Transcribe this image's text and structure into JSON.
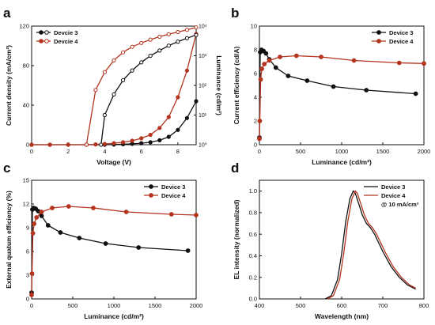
{
  "colors": {
    "device3": "#111111",
    "device4": "#b5341f",
    "axis": "#111111"
  },
  "chart_data": [
    {
      "panel_letter": "a",
      "type": "line",
      "xlabel": "Voltage (V)",
      "ylabel": "Current density (mA/cm²)",
      "ylabel_right": "Luminance (cd/m²)",
      "xlim": [
        0,
        9
      ],
      "xticks": [
        0,
        2,
        4,
        6,
        8
      ],
      "ylim": [
        0,
        120
      ],
      "yticks": [
        0,
        40,
        80,
        120
      ],
      "y2lim_log": [
        0,
        4
      ],
      "y2ticks": [
        "10⁰",
        "10¹",
        "10²",
        "10³",
        "10⁴"
      ],
      "legend": [
        {
          "label": "Devcie 3",
          "series": "device3"
        },
        {
          "label": "Devcie 4",
          "series": "device4"
        }
      ],
      "current_density": [
        {
          "device": "device3",
          "x": [
            0,
            1,
            2,
            3,
            4,
            4.5,
            5,
            5.5,
            6,
            6.5,
            7,
            7.5,
            8,
            8.5,
            9
          ],
          "y": [
            0,
            0,
            0,
            0,
            0,
            0.2,
            0.5,
            0.9,
            1.5,
            2.5,
            4.5,
            8,
            15,
            27,
            44
          ]
        },
        {
          "device": "device4",
          "x": [
            0,
            1,
            2,
            3,
            3.5,
            4,
            4.5,
            5,
            5.5,
            6,
            6.5,
            7,
            7.5,
            8,
            8.5,
            9
          ],
          "y": [
            0,
            0,
            0,
            0,
            0.3,
            0.8,
            1.5,
            2.5,
            4,
            6.5,
            10,
            17,
            28,
            48,
            75,
            112
          ]
        }
      ],
      "luminance": [
        {
          "device": "device3",
          "x": [
            3.8,
            4,
            4.5,
            5,
            5.5,
            6,
            6.5,
            7,
            7.5,
            8,
            8.5,
            9
          ],
          "y": [
            1,
            10,
            50,
            150,
            320,
            600,
            1000,
            1500,
            2200,
            3000,
            3900,
            5000
          ]
        },
        {
          "device": "device4",
          "x": [
            3,
            3.5,
            4,
            4.5,
            5,
            5.5,
            6,
            6.5,
            7,
            7.5,
            8,
            8.5,
            9
          ],
          "y": [
            1,
            70,
            280,
            700,
            1300,
            2000,
            2700,
            3500,
            4400,
            5300,
            6300,
            7500,
            9000
          ]
        }
      ]
    },
    {
      "panel_letter": "b",
      "type": "line",
      "xlabel": "Luminance (cd/m²)",
      "ylabel": "Current efficiency (cd/A)",
      "xlim": [
        0,
        2000
      ],
      "xticks": [
        0,
        500,
        1000,
        1500,
        2000
      ],
      "ylim": [
        0,
        10
      ],
      "yticks": [
        0,
        2,
        4,
        6,
        8,
        10
      ],
      "legend": [
        {
          "label": "Device 3",
          "series": "device3"
        },
        {
          "label": "Device 4",
          "series": "device4"
        }
      ],
      "series": [
        {
          "name": "Device 3",
          "device": "device3",
          "x": [
            0,
            10,
            25,
            50,
            80,
            120,
            200,
            350,
            580,
            900,
            1300,
            1900
          ],
          "y": [
            0.6,
            7.8,
            8.0,
            7.9,
            7.7,
            7.2,
            6.5,
            5.8,
            5.4,
            4.9,
            4.6,
            4.3
          ]
        },
        {
          "name": "Device 4",
          "device": "device4",
          "x": [
            0,
            5,
            15,
            30,
            60,
            120,
            250,
            450,
            750,
            1150,
            1700,
            2000
          ],
          "y": [
            0.5,
            2.0,
            5.5,
            6.4,
            6.8,
            7.1,
            7.4,
            7.5,
            7.4,
            7.1,
            6.9,
            6.85
          ]
        }
      ]
    },
    {
      "panel_letter": "c",
      "type": "line",
      "xlabel": "Luminance (cd/m²)",
      "ylabel": "External quatum efficiency (%)",
      "xlim": [
        0,
        2000
      ],
      "xticks": [
        0,
        500,
        1000,
        1500,
        2000
      ],
      "ylim": [
        0,
        15
      ],
      "yticks": [
        0,
        3,
        6,
        9,
        12,
        15
      ],
      "legend": [
        {
          "label": "Device 3",
          "series": "device3"
        },
        {
          "label": "Device 4",
          "series": "device4"
        }
      ],
      "series": [
        {
          "name": "Device 3",
          "device": "device3",
          "x": [
            0,
            10,
            25,
            50,
            80,
            120,
            200,
            350,
            580,
            900,
            1300,
            1900
          ],
          "y": [
            0.8,
            11.3,
            11.5,
            11.4,
            11.1,
            10.5,
            9.3,
            8.4,
            7.7,
            7.0,
            6.5,
            6.1
          ]
        },
        {
          "name": "Device 4",
          "device": "device4",
          "x": [
            0,
            5,
            15,
            30,
            60,
            120,
            250,
            450,
            750,
            1150,
            1700,
            2000
          ],
          "y": [
            0.5,
            3.2,
            8.3,
            9.5,
            10.3,
            11.0,
            11.5,
            11.7,
            11.5,
            11.0,
            10.7,
            10.6
          ]
        }
      ]
    },
    {
      "panel_letter": "d",
      "type": "line",
      "xlabel": "Wavelength (nm)",
      "ylabel": "EL intensity (normalized)",
      "xlim": [
        400,
        800
      ],
      "xticks": [
        400,
        500,
        600,
        700,
        800
      ],
      "ylim": [
        0,
        1.1
      ],
      "yticks": [
        "0.0",
        "0.2",
        "0.4",
        "0.6",
        "0.8",
        "1.0"
      ],
      "legend": [
        {
          "label": "Device 3",
          "series": "device3"
        },
        {
          "label": "Device 4",
          "series": "device4"
        }
      ],
      "legend_note": "@ 10 mA/cm²",
      "series": [
        {
          "name": "Device 3",
          "device": "device3",
          "x": [
            560,
            575,
            590,
            600,
            610,
            620,
            628,
            633,
            640,
            650,
            660,
            670,
            680,
            690,
            700,
            720,
            740,
            760,
            780
          ],
          "y": [
            0.0,
            0.03,
            0.18,
            0.42,
            0.72,
            0.93,
            1.0,
            0.98,
            0.9,
            0.78,
            0.7,
            0.66,
            0.6,
            0.52,
            0.44,
            0.3,
            0.2,
            0.13,
            0.09
          ]
        },
        {
          "name": "Device 4",
          "device": "device4",
          "x": [
            565,
            580,
            595,
            605,
            615,
            625,
            633,
            638,
            645,
            655,
            665,
            675,
            685,
            695,
            705,
            725,
            745,
            765,
            780
          ],
          "y": [
            0.0,
            0.03,
            0.18,
            0.42,
            0.72,
            0.93,
            1.0,
            0.98,
            0.9,
            0.78,
            0.7,
            0.66,
            0.6,
            0.52,
            0.44,
            0.3,
            0.2,
            0.13,
            0.1
          ]
        }
      ]
    }
  ]
}
